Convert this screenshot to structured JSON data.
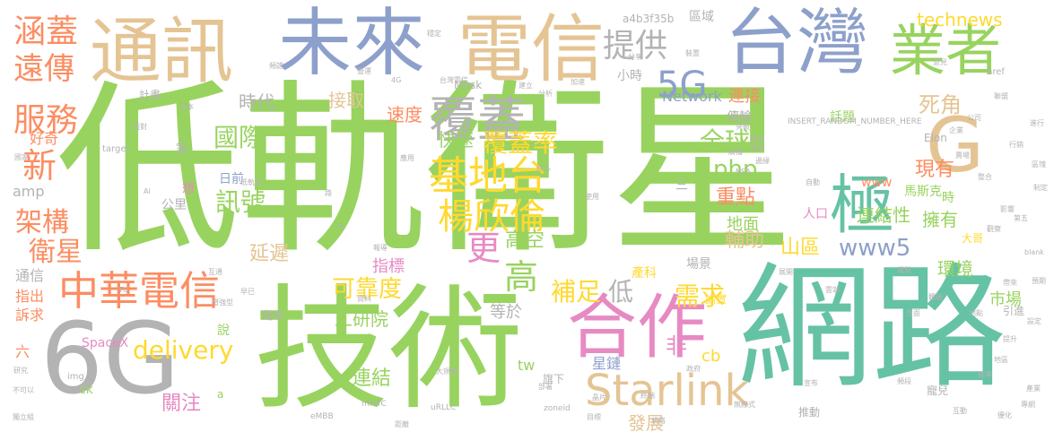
{
  "palette": {
    "green": "#98d35f",
    "teal": "#66c2a5",
    "blue": "#8da0cb",
    "orange": "#fc8d62",
    "tan": "#e5c494",
    "pink": "#e78ac3",
    "yellow": "#ffd92f",
    "gray": "#b3b3b3"
  },
  "words": [
    {
      "t": "低軌衛星",
      "c": "green"
    },
    {
      "t": "網路",
      "c": "teal"
    },
    {
      "t": "技術",
      "c": "green"
    },
    {
      "t": "6G",
      "c": "gray"
    },
    {
      "t": "電信",
      "c": "tan"
    },
    {
      "t": "台灣",
      "c": "blue"
    },
    {
      "t": "未來",
      "c": "blue"
    },
    {
      "t": "通訊",
      "c": "tan"
    },
    {
      "t": "合作",
      "c": "pink"
    },
    {
      "t": "業者",
      "c": "green"
    },
    {
      "t": "G",
      "c": "tan"
    },
    {
      "t": "覆蓋",
      "c": "gray"
    },
    {
      "t": "極",
      "c": "teal"
    },
    {
      "t": "中華電信",
      "c": "orange"
    },
    {
      "t": "基地台",
      "c": "yellow"
    },
    {
      "t": "楊欣倫",
      "c": "yellow"
    },
    {
      "t": "5G",
      "c": "blue"
    },
    {
      "t": "Starlink",
      "c": "tan"
    },
    {
      "t": "涵蓋",
      "c": "orange"
    },
    {
      "t": "遠傳",
      "c": "orange"
    },
    {
      "t": "服務",
      "c": "orange"
    },
    {
      "t": "新",
      "c": "orange"
    },
    {
      "t": "提供",
      "c": "gray"
    },
    {
      "t": "更",
      "c": "pink"
    },
    {
      "t": "高",
      "c": "green"
    },
    {
      "t": "覆蓋率",
      "c": "yellow"
    },
    {
      "t": "衛星",
      "c": "orange"
    },
    {
      "t": "架構",
      "c": "orange"
    },
    {
      "t": "delivery",
      "c": "yellow"
    },
    {
      "t": "工研院",
      "c": "green"
    },
    {
      "t": "全球",
      "c": "green"
    },
    {
      "t": "國際",
      "c": "green"
    },
    {
      "t": "訊號",
      "c": "green"
    },
    {
      "t": "可靠度",
      "c": "yellow"
    },
    {
      "t": "補足",
      "c": "yellow"
    },
    {
      "t": "低",
      "c": "gray"
    },
    {
      "t": "需求",
      "c": "yellow"
    },
    {
      "t": "www5",
      "c": "blue"
    },
    {
      "t": "高空",
      "c": "green"
    },
    {
      "t": "php",
      "c": "green"
    },
    {
      "t": "死角",
      "c": "tan"
    },
    {
      "t": "現有",
      "c": "orange"
    },
    {
      "t": "延遲",
      "c": "tan"
    },
    {
      "t": "快速",
      "c": "green"
    },
    {
      "t": "連接",
      "c": "orange"
    },
    {
      "t": "連結性",
      "c": "green"
    },
    {
      "t": "擁有",
      "c": "green"
    },
    {
      "t": "環境",
      "c": "green"
    },
    {
      "t": "重點",
      "c": "orange"
    },
    {
      "t": "輔助",
      "c": "tan"
    },
    {
      "t": "山區",
      "c": "yellow"
    },
    {
      "t": "地面",
      "c": "green"
    },
    {
      "t": "technews",
      "c": "yellow"
    },
    {
      "t": "Network",
      "c": "blue"
    },
    {
      "t": "接取",
      "c": "tan"
    },
    {
      "t": "時代",
      "c": "gray"
    },
    {
      "t": "速度",
      "c": "orange"
    },
    {
      "t": "指標",
      "c": "pink"
    },
    {
      "t": "連結",
      "c": "green"
    },
    {
      "t": "發展",
      "c": "tan"
    },
    {
      "t": "關注",
      "c": "pink"
    },
    {
      "t": "等於",
      "c": "gray"
    },
    {
      "t": "非",
      "c": "pink"
    },
    {
      "t": "星鏈",
      "c": "blue"
    },
    {
      "t": "市場",
      "c": "green"
    },
    {
      "t": "好奇",
      "c": "orange"
    },
    {
      "t": "通信",
      "c": "gray"
    },
    {
      "t": "指出",
      "c": "orange"
    },
    {
      "t": "訴求",
      "c": "orange"
    },
    {
      "t": "六",
      "c": "orange"
    },
    {
      "t": "amp",
      "c": "gray"
    },
    {
      "t": "a4b3f35b",
      "c": "gray"
    },
    {
      "t": "區域",
      "c": "gray"
    },
    {
      "t": "小時",
      "c": "gray"
    },
    {
      "t": "傳輸",
      "c": "gray"
    },
    {
      "t": "話題",
      "c": "green"
    },
    {
      "t": "馬斯克",
      "c": "green"
    },
    {
      "t": "tw",
      "c": "green"
    },
    {
      "t": "cb",
      "c": "yellow"
    },
    {
      "t": "時",
      "c": "green"
    },
    {
      "t": "人口",
      "c": "pink"
    },
    {
      "t": "www",
      "c": "orange"
    },
    {
      "t": "產科",
      "c": "yellow"
    },
    {
      "t": "SpaceX",
      "c": "pink"
    },
    {
      "t": "說",
      "c": "green"
    },
    {
      "t": "ck",
      "c": "green"
    },
    {
      "t": "三",
      "c": "gray"
    },
    {
      "t": "場景",
      "c": "gray"
    },
    {
      "t": "寵兒",
      "c": "gray"
    },
    {
      "t": "推動",
      "c": "gray"
    },
    {
      "t": "引進",
      "c": "gray"
    },
    {
      "t": "日前",
      "c": "blue"
    },
    {
      "t": "家",
      "c": "gray"
    },
    {
      "t": "公里",
      "c": "gray"
    },
    {
      "t": "想",
      "c": "pink"
    },
    {
      "t": "計畫",
      "c": "gray"
    },
    {
      "t": "Musk",
      "c": "gray"
    },
    {
      "t": "Elon",
      "c": "gray"
    },
    {
      "t": "INSERT_RANDOM_NUMBER_HERE",
      "c": "gray"
    },
    {
      "t": "論實",
      "c": "yellow"
    },
    {
      "t": "龍頭",
      "c": "gray"
    },
    {
      "t": "n",
      "c": "green"
    },
    {
      "t": "href",
      "c": "gray"
    },
    {
      "t": "a",
      "c": "green"
    },
    {
      "t": "旗下",
      "c": "gray"
    },
    {
      "t": "img",
      "c": "gray"
    },
    {
      "t": "target",
      "c": "gray"
    },
    {
      "t": "ITU",
      "c": "gray"
    },
    {
      "t": "uRLLC",
      "c": "gray"
    },
    {
      "t": "mMTC",
      "c": "gray"
    },
    {
      "t": "zoneid",
      "c": "gray"
    },
    {
      "t": "eMBB",
      "c": "gray"
    },
    {
      "t": "NSA",
      "c": "gray"
    },
    {
      "t": "blank",
      "c": "gray"
    },
    {
      "t": "AI",
      "c": "gray"
    },
    {
      "t": "4G",
      "c": "gray"
    },
    {
      "t": "台灣電信",
      "c": "gray"
    },
    {
      "t": "低軌道",
      "c": "gray"
    },
    {
      "t": "研究",
      "c": "gray"
    },
    {
      "t": "不可以",
      "c": "gray"
    },
    {
      "t": "獨立組",
      "c": "gray"
    },
    {
      "t": "穩定",
      "c": "gray"
    },
    {
      "t": "大哥",
      "c": "yellow"
    },
    {
      "t": "聯盟",
      "c": "gray"
    },
    {
      "t": "無線式",
      "c": "gray"
    },
    {
      "t": "標準",
      "c": "gray"
    },
    {
      "t": "優化",
      "c": "gray"
    },
    {
      "t": "提升",
      "c": "gray"
    },
    {
      "t": "設定",
      "c": "gray"
    },
    {
      "t": "預期",
      "c": "gray"
    },
    {
      "t": "政府",
      "c": "gray"
    },
    {
      "t": "國家",
      "c": "gray"
    },
    {
      "t": "頻譜",
      "c": "gray"
    },
    {
      "t": "營運",
      "c": "gray"
    },
    {
      "t": "應用",
      "c": "gray"
    },
    {
      "t": "分析",
      "c": "gray"
    },
    {
      "t": "公司",
      "c": "gray"
    },
    {
      "t": "報導",
      "c": "gray"
    },
    {
      "t": "增強型",
      "c": "gray"
    },
    {
      "t": "大規模",
      "c": "gray"
    },
    {
      "t": "自動",
      "c": "gray"
    },
    {
      "t": "數據",
      "c": "gray"
    },
    {
      "t": "核心",
      "c": "gray"
    },
    {
      "t": "部署",
      "c": "gray"
    },
    {
      "t": "晶片",
      "c": "gray"
    },
    {
      "t": "終端",
      "c": "gray"
    },
    {
      "t": "裝置",
      "c": "gray"
    },
    {
      "t": "頻段",
      "c": "gray"
    },
    {
      "t": "整合",
      "c": "gray"
    },
    {
      "t": "產業",
      "c": "gray"
    },
    {
      "t": "資料",
      "c": "gray"
    },
    {
      "t": "互動",
      "c": "gray"
    },
    {
      "t": "互通",
      "c": "gray"
    },
    {
      "t": "早已",
      "c": "gray"
    },
    {
      "t": "面對",
      "c": "gray"
    },
    {
      "t": "日本",
      "c": "gray"
    },
    {
      "t": "廣播",
      "c": "gray"
    },
    {
      "t": "成本",
      "c": "gray"
    },
    {
      "t": "第五",
      "c": "gray"
    },
    {
      "t": "影響",
      "c": "gray"
    },
    {
      "t": "觀察",
      "c": "gray"
    },
    {
      "t": "行銷",
      "c": "gray"
    },
    {
      "t": "突破",
      "c": "gray"
    },
    {
      "t": "邊緣",
      "c": "gray"
    },
    {
      "t": "專網",
      "c": "gray"
    },
    {
      "t": "區塊",
      "c": "gray"
    },
    {
      "t": "制定",
      "c": "gray"
    },
    {
      "t": "賣場",
      "c": "gray"
    },
    {
      "t": "加速",
      "c": "gray"
    },
    {
      "t": "使用",
      "c": "gray"
    },
    {
      "t": "規格",
      "c": "gray"
    },
    {
      "t": "意見",
      "c": "gray"
    },
    {
      "t": "帶來",
      "c": "gray"
    },
    {
      "t": "地區",
      "c": "gray"
    },
    {
      "t": "地點",
      "c": "gray"
    },
    {
      "t": "分享",
      "c": "gray"
    },
    {
      "t": "建立",
      "c": "gray"
    },
    {
      "t": "目標",
      "c": "gray"
    },
    {
      "t": "方面",
      "c": "gray"
    },
    {
      "t": "趨勢",
      "c": "gray"
    },
    {
      "t": "體驗",
      "c": "gray"
    },
    {
      "t": "企業",
      "c": "gray"
    },
    {
      "t": "進行",
      "c": "gray"
    },
    {
      "t": "雲端",
      "c": "gray"
    },
    {
      "t": "宣布",
      "c": "gray"
    },
    {
      "t": "展開",
      "c": "gray"
    },
    {
      "t": "代",
      "c": "gray"
    },
    {
      "t": "路",
      "c": "gray"
    },
    {
      "t": "距離",
      "c": "gray"
    }
  ]
}
